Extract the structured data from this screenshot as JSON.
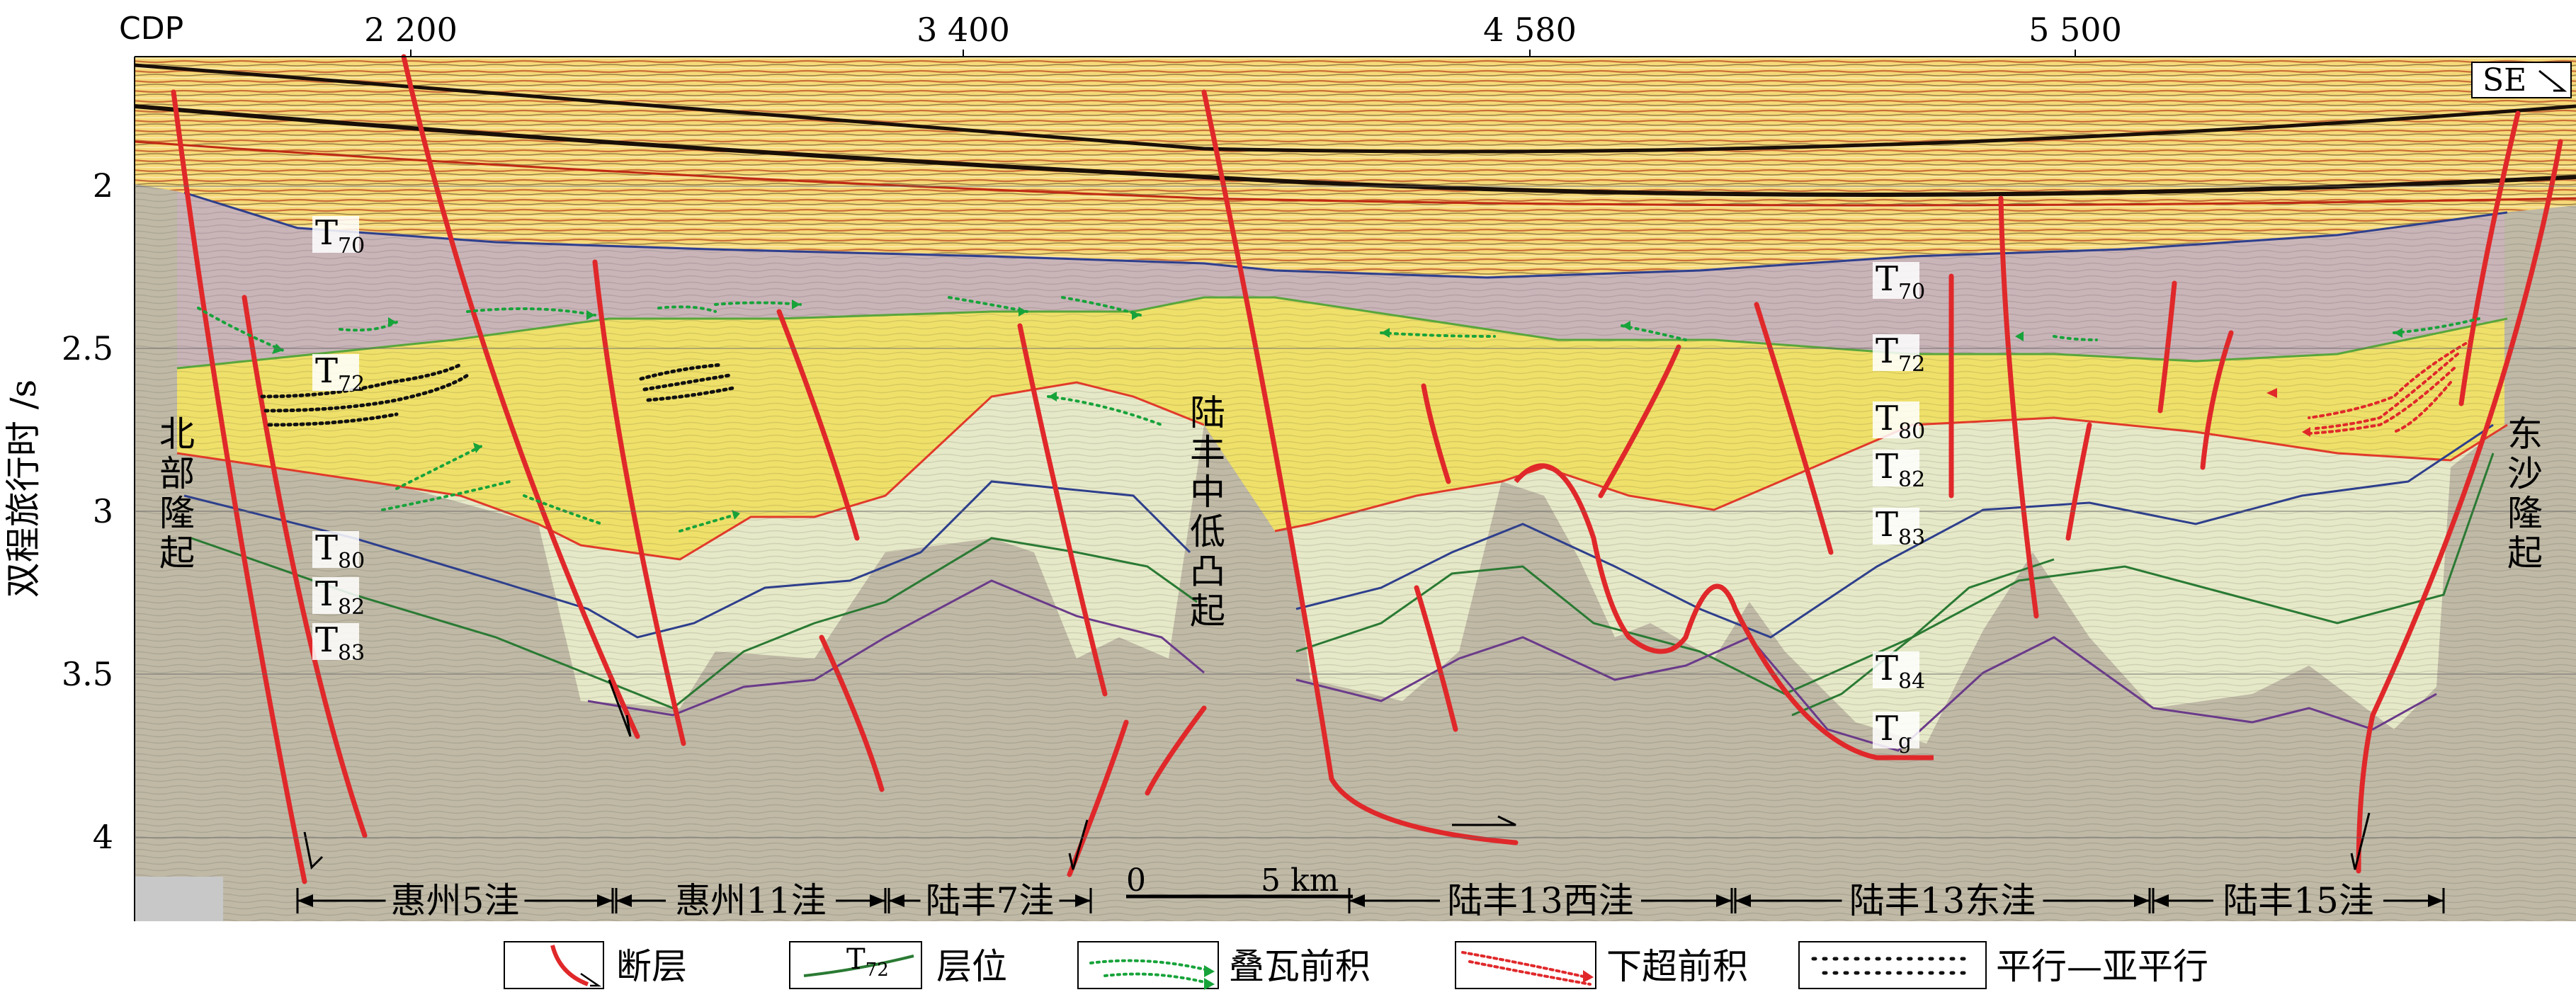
{
  "header": {
    "cdp_label": "CDP",
    "cdp_ticks": [
      {
        "value": 2200,
        "label": "2 200"
      },
      {
        "value": 3400,
        "label": "3 400"
      },
      {
        "value": 4580,
        "label": "4 580"
      },
      {
        "value": 5500,
        "label": "5 500"
      }
    ],
    "direction_label": "SE"
  },
  "y_axis": {
    "title": "双程旅行时 /s",
    "ticks": [
      "2",
      "2.5",
      "3",
      "3.5",
      "4"
    ]
  },
  "uplifts": {
    "north": "北部隆起",
    "middle": "陆丰中低凸起",
    "east": "东沙隆起"
  },
  "horizon_labels": {
    "left": [
      {
        "main": "T",
        "sub": "70"
      },
      {
        "main": "T",
        "sub": "72"
      },
      {
        "main": "T",
        "sub": "80"
      },
      {
        "main": "T",
        "sub": "82"
      },
      {
        "main": "T",
        "sub": "83"
      }
    ],
    "right": [
      {
        "main": "T",
        "sub": "70"
      },
      {
        "main": "T",
        "sub": "72"
      },
      {
        "main": "T",
        "sub": "80"
      },
      {
        "main": "T",
        "sub": "82"
      },
      {
        "main": "T",
        "sub": "83"
      },
      {
        "main": "T",
        "sub": "84"
      },
      {
        "main": "T",
        "sub": "g"
      }
    ]
  },
  "scale_bar": {
    "zero": "0",
    "length": "5 km"
  },
  "sags": [
    "惠州5洼",
    "惠州11洼",
    "陆丰7洼",
    "陆丰13西洼",
    "陆丰13东洼",
    "陆丰15洼"
  ],
  "legend": [
    {
      "key": "fault",
      "label": "断层"
    },
    {
      "key": "horizon",
      "label": "层位",
      "sample_main": "T",
      "sample_sub": "72"
    },
    {
      "key": "imbricate",
      "label": "叠瓦前积"
    },
    {
      "key": "downlap",
      "label": "下超前积"
    },
    {
      "key": "parallel",
      "label": "平行—亚平行"
    }
  ],
  "colors": {
    "fault": "#e0282a",
    "imbricate": "#17a33a",
    "downlap": "#e0282a",
    "t70": "#2e3f8c",
    "t72": "#58a63c",
    "t80": "#e13a2a",
    "t82": "#2e3f8c",
    "t83": "#2a7a33",
    "t84": "#2a7a33",
    "tg": "#6a3a8a",
    "sediment_top": "#f4d070",
    "sediment_purple": "#c9b4b8",
    "sediment_yellow": "#efe06a",
    "sediment_light": "#e6e9c8",
    "basement": "#bfb9a6"
  }
}
